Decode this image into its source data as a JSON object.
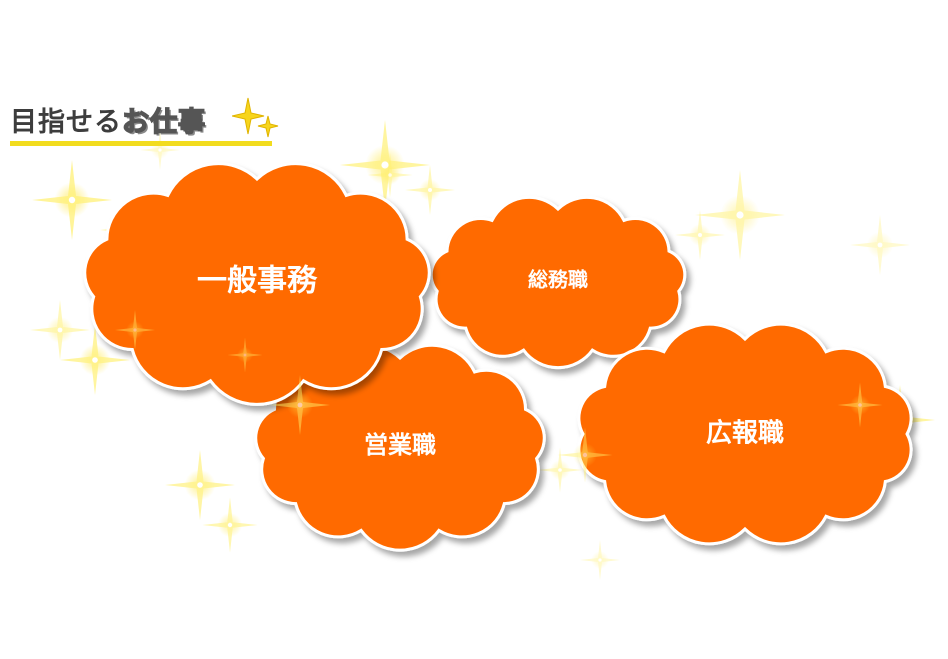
{
  "heading": {
    "part_a": "目指せる",
    "part_b": "お仕事"
  },
  "colors": {
    "cloud": "#ff6a00",
    "sparkle": "#ffe94a",
    "underline": "#f2dc1e"
  },
  "clouds": [
    {
      "id": "ippan-jimu",
      "label": "一般事務"
    },
    {
      "id": "somu",
      "label": "総務職"
    },
    {
      "id": "eigyo",
      "label": "営業職"
    },
    {
      "id": "koho",
      "label": "広報職"
    }
  ]
}
